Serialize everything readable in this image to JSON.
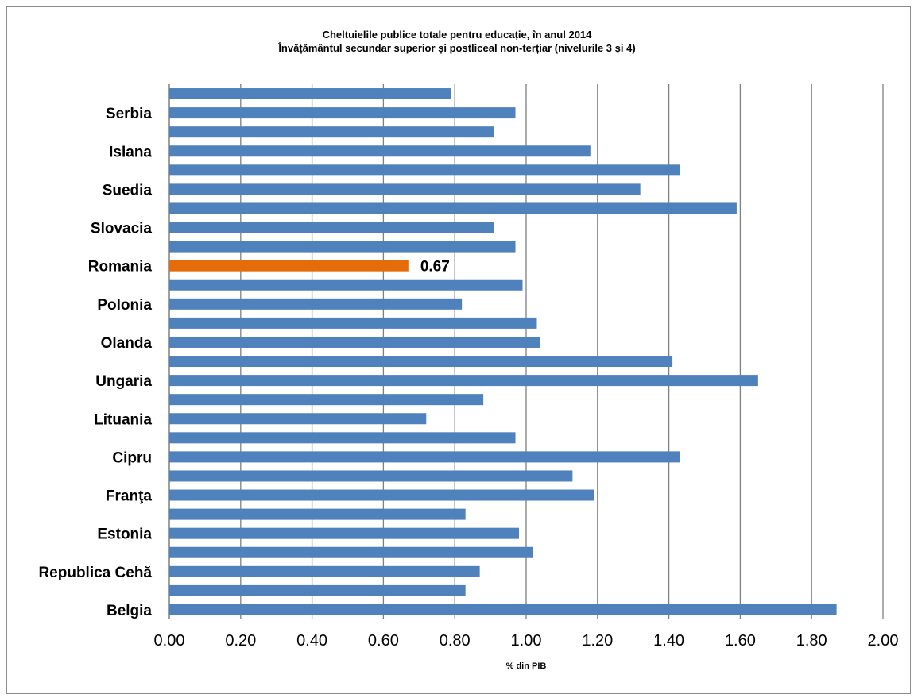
{
  "chart_data": {
    "type": "bar",
    "orientation": "horizontal",
    "title": "Cheltuielile publice totale pentru educație, în anul 2014",
    "subtitle": "Învățământul secundar superior și postliceal non-terțiar (nivelurile 3 și 4)",
    "xlabel": "% din PIB",
    "xlim": [
      0,
      2.0
    ],
    "xticks": [
      "0.00",
      "0.20",
      "0.40",
      "0.60",
      "0.80",
      "1.00",
      "1.20",
      "1.40",
      "1.60",
      "1.80",
      "2.00"
    ],
    "grid": "vertical",
    "categories": [
      "Belgia",
      "",
      "Republica Cehă",
      "",
      "Estonia",
      "",
      "Franţa",
      "",
      "Cipru",
      "",
      "Lituania",
      "",
      "Ungaria",
      "",
      "Olanda",
      "",
      "Polonia",
      "",
      "Romania",
      "",
      "Slovacia",
      "",
      "Suedia",
      "",
      "Islana",
      "",
      "Serbia",
      ""
    ],
    "values": [
      1.87,
      0.83,
      0.87,
      1.02,
      0.98,
      0.83,
      1.19,
      1.13,
      1.43,
      0.97,
      0.72,
      0.88,
      1.65,
      1.41,
      1.04,
      1.03,
      0.82,
      0.99,
      0.67,
      0.97,
      0.91,
      1.59,
      1.32,
      1.43,
      1.18,
      0.91,
      0.97,
      0.79
    ],
    "highlight": {
      "category": "Romania",
      "value": 0.67,
      "label": "0.67"
    },
    "colors": {
      "bar": "#4f81bd",
      "highlight": "#e46c0a",
      "grid": "#808080"
    }
  }
}
